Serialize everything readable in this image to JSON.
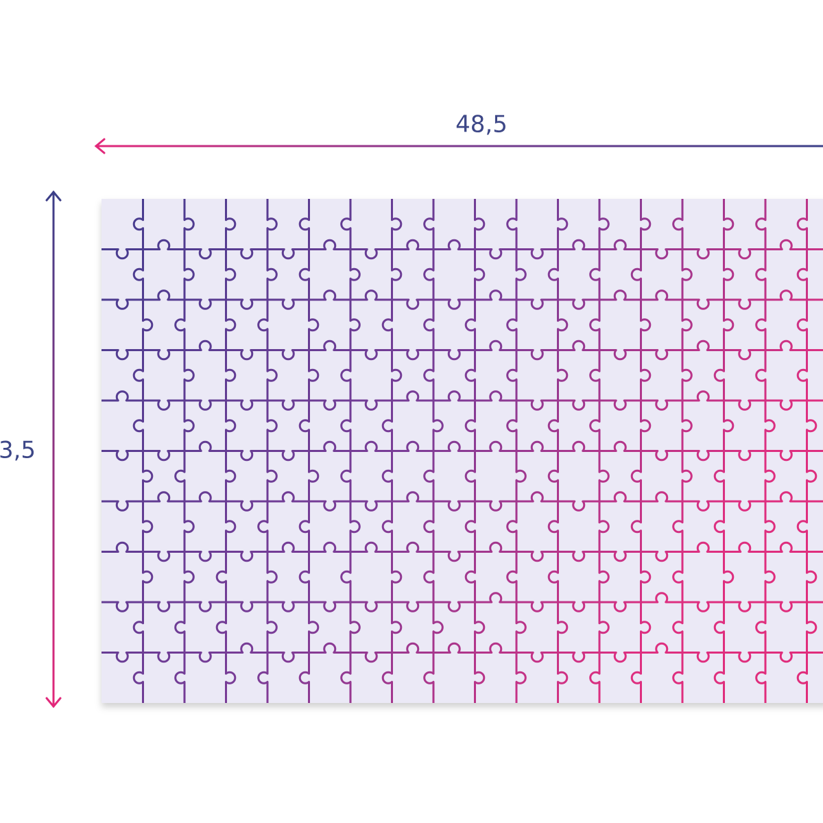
{
  "width_label": "48,5",
  "height_label": "3,5"
}
